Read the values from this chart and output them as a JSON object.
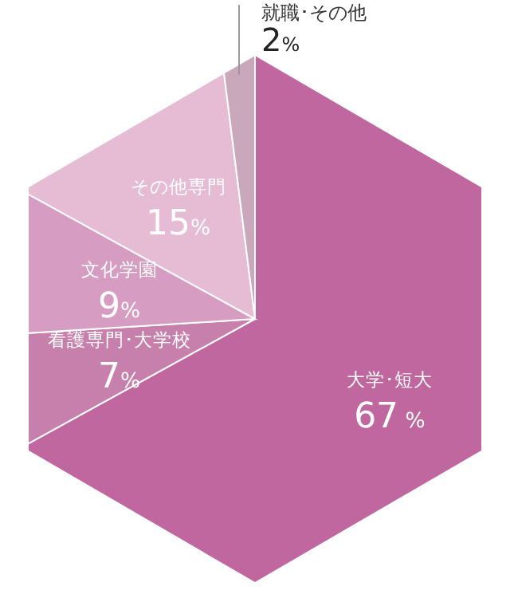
{
  "chart_data": {
    "type": "pie",
    "categories": [
      "大学･短大",
      "看護専門･大学校",
      "文化学園",
      "その他専門",
      "就職･その他"
    ],
    "values": [
      67,
      7,
      9,
      15,
      2
    ],
    "colors": [
      "#c1679f",
      "#c77fab",
      "#d69cc2",
      "#e6bcd5",
      "#c9a8bb"
    ],
    "value_labels": [
      "67 %",
      "7%",
      "9%",
      "15%",
      "2%"
    ]
  }
}
